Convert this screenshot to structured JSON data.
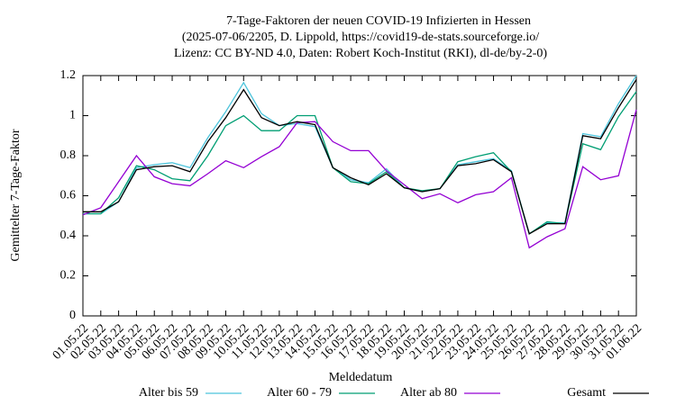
{
  "chart_data": {
    "type": "line",
    "title": [
      "7-Tage-Faktoren der neuen COVID-19 Infizierten in Hessen",
      "(2025-07-06/2205, D. Lippold, https://covid19-de-stats.sourceforge.io/",
      "Lizenz: CC BY-ND 4.0, Daten: Robert Koch-Institut (RKI), dl-de/by-2-0)"
    ],
    "x_label": "Meldedatum",
    "y_label": "Gemittelter 7-Tage-Faktor",
    "categories": [
      "01.05.22",
      "02.05.22",
      "03.05.22",
      "04.05.22",
      "05.05.22",
      "06.05.22",
      "07.05.22",
      "08.05.22",
      "09.05.22",
      "10.05.22",
      "11.05.22",
      "12.05.22",
      "13.05.22",
      "14.05.22",
      "15.05.22",
      "16.05.22",
      "17.05.22",
      "18.05.22",
      "19.05.22",
      "20.05.22",
      "21.05.22",
      "22.05.22",
      "23.05.22",
      "24.05.22",
      "25.05.22",
      "26.05.22",
      "27.05.22",
      "28.05.22",
      "29.05.22",
      "30.05.22",
      "31.05.22",
      "01.06.22"
    ],
    "ylim": [
      0,
      1.2
    ],
    "yticks": [
      0,
      0.2,
      0.4,
      0.6,
      0.8,
      1,
      1.2
    ],
    "series": [
      {
        "name": "Alter bis 59",
        "color": "#4cc4dc",
        "values": [
          0.51,
          0.51,
          0.57,
          0.74,
          0.755,
          0.765,
          0.74,
          0.89,
          1.02,
          1.165,
          1.01,
          0.95,
          0.96,
          0.945,
          0.74,
          0.68,
          0.665,
          0.735,
          0.64,
          0.62,
          0.635,
          0.755,
          0.77,
          0.785,
          0.725,
          0.41,
          0.465,
          0.465,
          0.91,
          0.895,
          1.06,
          1.2
        ]
      },
      {
        "name": "Alter 60 - 79",
        "color": "#009e73",
        "values": [
          0.51,
          0.51,
          0.59,
          0.75,
          0.73,
          0.685,
          0.675,
          0.8,
          0.95,
          1.0,
          0.925,
          0.925,
          1.0,
          1.0,
          0.74,
          0.67,
          0.66,
          0.72,
          0.64,
          0.625,
          0.635,
          0.77,
          0.795,
          0.815,
          0.72,
          0.41,
          0.47,
          0.46,
          0.86,
          0.83,
          0.995,
          1.12
        ]
      },
      {
        "name": "Alter ab 80",
        "color": "#9400d3",
        "values": [
          0.505,
          0.54,
          0.67,
          0.8,
          0.695,
          0.66,
          0.65,
          0.71,
          0.775,
          0.74,
          0.795,
          0.845,
          0.965,
          0.97,
          0.87,
          0.825,
          0.825,
          0.725,
          0.655,
          0.585,
          0.61,
          0.565,
          0.605,
          0.62,
          0.69,
          0.34,
          0.395,
          0.435,
          0.745,
          0.68,
          0.7,
          1.03
        ]
      },
      {
        "name": "Gesamt",
        "color": "#000000",
        "values": [
          0.52,
          0.52,
          0.57,
          0.73,
          0.745,
          0.75,
          0.72,
          0.87,
          0.99,
          1.13,
          0.99,
          0.95,
          0.97,
          0.955,
          0.74,
          0.69,
          0.655,
          0.71,
          0.64,
          0.62,
          0.635,
          0.75,
          0.76,
          0.78,
          0.72,
          0.41,
          0.46,
          0.46,
          0.9,
          0.885,
          1.04,
          1.18
        ]
      }
    ]
  }
}
